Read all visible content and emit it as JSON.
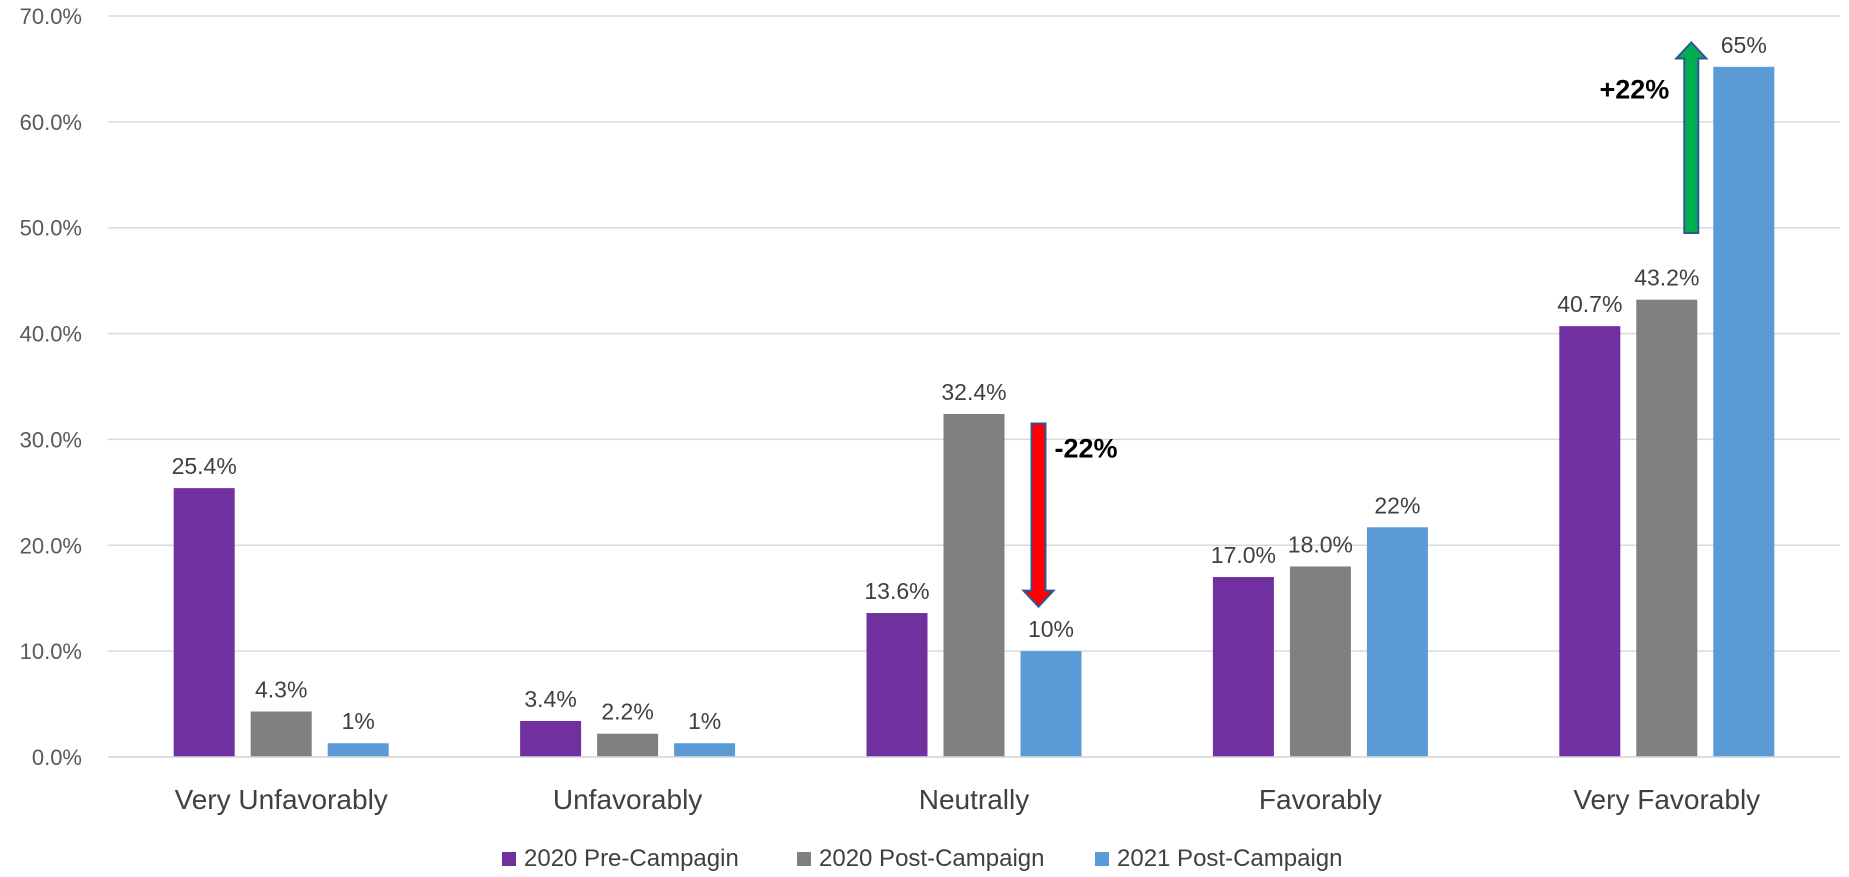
{
  "chart_data": {
    "type": "bar",
    "title": "",
    "xlabel": "",
    "ylabel": "",
    "ylim": [
      0,
      70
    ],
    "yticks": [
      0,
      10,
      20,
      30,
      40,
      50,
      60,
      70
    ],
    "ytick_labels": [
      "0.0%",
      "10.0%",
      "20.0%",
      "30.0%",
      "40.0%",
      "50.0%",
      "60.0%",
      "70.0%"
    ],
    "grid": true,
    "legend_position": "bottom",
    "categories": [
      "Very Unfavorably",
      "Unfavorably",
      "Neutrally",
      "Favorably",
      "Very Favorably"
    ],
    "series": [
      {
        "name": "2020 Pre-Campagin",
        "color": "#7030A0",
        "values": [
          25.4,
          3.4,
          13.6,
          17.0,
          40.7
        ],
        "labels": [
          "25.4%",
          "3.4%",
          "13.6%",
          "17.0%",
          "40.7%"
        ]
      },
      {
        "name": "2020 Post-Campaign",
        "color": "#808080",
        "values": [
          4.3,
          2.2,
          32.4,
          18.0,
          43.2
        ],
        "labels": [
          "4.3%",
          "2.2%",
          "32.4%",
          "18.0%",
          "43.2%"
        ]
      },
      {
        "name": "2021 Post-Campaign",
        "color": "#5B9BD5",
        "values": [
          1.3,
          1.3,
          10,
          21.7,
          65.2
        ],
        "labels": [
          "1%",
          "1%",
          "10%",
          "22%",
          "65%"
        ]
      }
    ],
    "annotations": [
      {
        "text": "-22%",
        "direction": "down",
        "category": "Neutrally",
        "from_value": 31.5,
        "to_value": 14.2,
        "color": "#FF0000"
      },
      {
        "text": "+22%",
        "direction": "up",
        "category": "Very Favorably",
        "from_value": 49.5,
        "to_value": 67.5,
        "color": "#00B050"
      }
    ]
  }
}
